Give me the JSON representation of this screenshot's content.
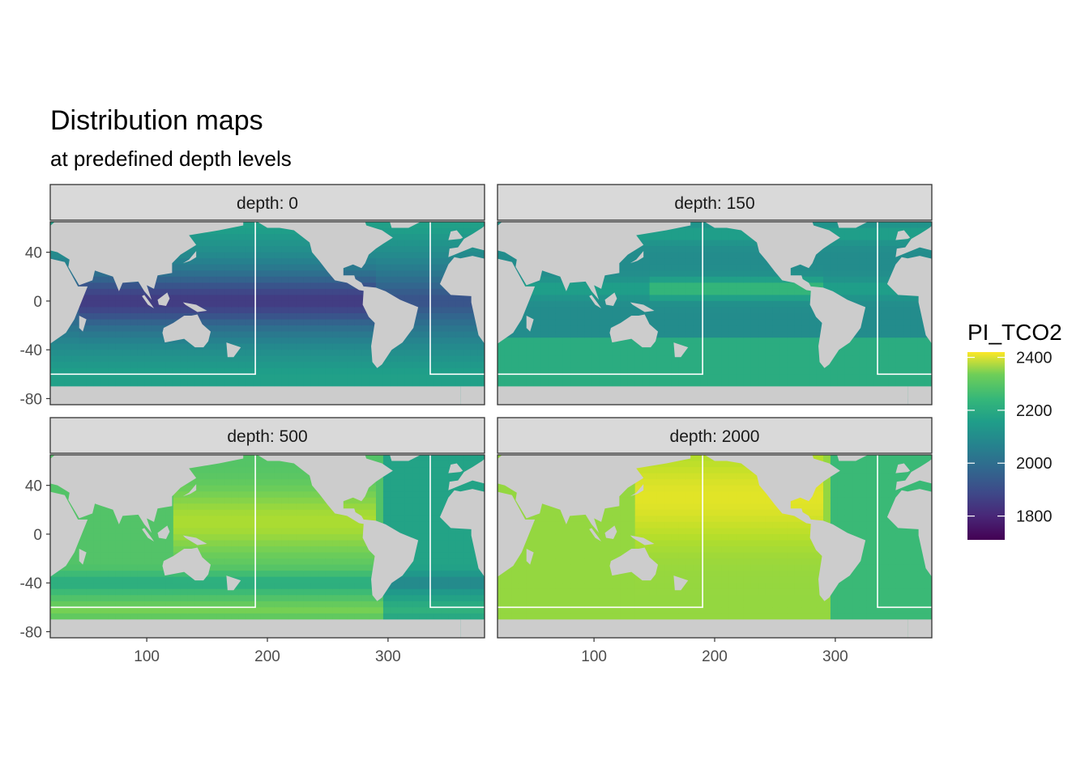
{
  "chart_data": {
    "type": "heatmap",
    "title": "Distribution maps",
    "subtitle": "at predefined depth levels",
    "facet_prefix": "depth: ",
    "facets": [
      {
        "label": "depth: 0",
        "depth": 0,
        "surface_low": 1760,
        "surface_high": 2110,
        "notes": "low values in tropical Indo-Pacific warm pool, higher toward Southern Ocean"
      },
      {
        "label": "depth: 150",
        "depth": 150,
        "surface_low": 1960,
        "surface_high": 2230
      },
      {
        "label": "depth: 500",
        "depth": 500,
        "surface_low": 2060,
        "surface_high": 2360
      },
      {
        "label": "depth: 2000",
        "depth": 2000,
        "surface_low": 2200,
        "surface_high": 2390
      }
    ],
    "x_ticks": [
      100,
      200,
      300
    ],
    "y_ticks": [
      40,
      0,
      -40,
      -80
    ],
    "xlim": [
      20,
      380
    ],
    "ylim": [
      -85,
      65
    ],
    "colorbar": {
      "title": "PI_TCO2",
      "ticks": [
        2400,
        2200,
        2000,
        1800
      ],
      "range": [
        1710,
        2420
      ],
      "palette": "viridis"
    },
    "colors": {
      "land": "#cccccc",
      "strip": "#d9d9d9",
      "panel_border": "#333333",
      "box_outline": "#ffffff"
    }
  }
}
